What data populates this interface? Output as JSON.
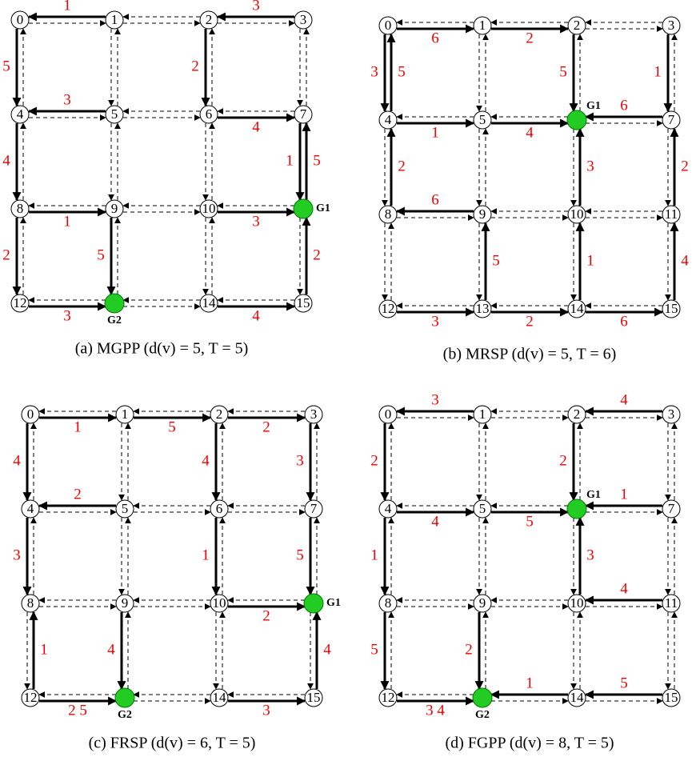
{
  "panels": [
    {
      "caption": "(a)  MGPP (d(v) = 5, T = 5)",
      "nodes": [
        "0",
        "1",
        "2",
        "3",
        "4",
        "5",
        "6",
        "7",
        "8",
        "9",
        "10",
        null,
        "12",
        null,
        "14",
        "15"
      ],
      "goals": [
        {
          "node": 11,
          "label": "G1"
        },
        {
          "node": 13,
          "label": "G2"
        }
      ],
      "edges": [
        {
          "from": 1,
          "to": 0,
          "label": 1
        },
        {
          "from": 3,
          "to": 2,
          "label": 3
        },
        {
          "from": 0,
          "to": 4,
          "label": 5
        },
        {
          "from": 2,
          "to": 6,
          "label": 2
        },
        {
          "from": 5,
          "to": 4,
          "label": 3
        },
        {
          "from": 6,
          "to": 7,
          "label": 4
        },
        {
          "from": 4,
          "to": 8,
          "label": 4
        },
        {
          "from": 7,
          "to": 11,
          "label": 1
        },
        {
          "from": 11,
          "to": 7,
          "label": 5
        },
        {
          "from": 8,
          "to": 9,
          "label": 1
        },
        {
          "from": 10,
          "to": 11,
          "label": 3
        },
        {
          "from": 8,
          "to": 12,
          "label": 2
        },
        {
          "from": 9,
          "to": 13,
          "label": 5
        },
        {
          "from": 12,
          "to": 13,
          "label": 3
        },
        {
          "from": 14,
          "to": 15,
          "label": 4
        },
        {
          "from": 15,
          "to": 11,
          "label": 2
        }
      ]
    },
    {
      "caption": "(b)  MRSP (d(v) = 5, T = 6)",
      "nodes": [
        "0",
        "1",
        "2",
        "3",
        "4",
        "5",
        null,
        "7",
        "8",
        "9",
        "10",
        "11",
        "12",
        "13",
        "14",
        "15"
      ],
      "goals": [
        {
          "node": 6,
          "label": "G1"
        }
      ],
      "edges": [
        {
          "from": 0,
          "to": 1,
          "label": 6
        },
        {
          "from": 1,
          "to": 2,
          "label": 2
        },
        {
          "from": 0,
          "to": 4,
          "label": 3
        },
        {
          "from": 4,
          "to": 0,
          "label": 5
        },
        {
          "from": 2,
          "to": 6,
          "label": 5
        },
        {
          "from": 3,
          "to": 7,
          "label": 1
        },
        {
          "from": 4,
          "to": 5,
          "label": 1
        },
        {
          "from": 5,
          "to": 6,
          "label": 4
        },
        {
          "from": 7,
          "to": 6,
          "label": 6
        },
        {
          "from": 8,
          "to": 4,
          "label": 2
        },
        {
          "from": 10,
          "to": 6,
          "label": 3
        },
        {
          "from": 11,
          "to": 7,
          "label": 2
        },
        {
          "from": 9,
          "to": 8,
          "label": 6
        },
        {
          "from": 13,
          "to": 9,
          "label": 5
        },
        {
          "from": 14,
          "to": 10,
          "label": 1
        },
        {
          "from": 15,
          "to": 11,
          "label": 4
        },
        {
          "from": 12,
          "to": 13,
          "label": 3
        },
        {
          "from": 13,
          "to": 14,
          "label": 2
        },
        {
          "from": 14,
          "to": 15,
          "label": 6
        }
      ]
    },
    {
      "caption": "(c)  FRSP (d(v) = 6, T = 5)",
      "nodes": [
        "0",
        "1",
        "2",
        "3",
        "4",
        "5",
        "6",
        "7",
        "8",
        "9",
        "10",
        null,
        "12",
        null,
        "14",
        "15"
      ],
      "goals": [
        {
          "node": 11,
          "label": "G1"
        },
        {
          "node": 13,
          "label": "G2"
        }
      ],
      "edges": [
        {
          "from": 0,
          "to": 1,
          "label": 1
        },
        {
          "from": 1,
          "to": 2,
          "label": 5
        },
        {
          "from": 2,
          "to": 3,
          "label": 2
        },
        {
          "from": 0,
          "to": 4,
          "label": 4
        },
        {
          "from": 2,
          "to": 6,
          "label": 4
        },
        {
          "from": 3,
          "to": 7,
          "label": 3
        },
        {
          "from": 5,
          "to": 4,
          "label": 2
        },
        {
          "from": 4,
          "to": 8,
          "label": 3
        },
        {
          "from": 6,
          "to": 10,
          "label": 1
        },
        {
          "from": 7,
          "to": 11,
          "label": 5
        },
        {
          "from": 10,
          "to": 11,
          "label": 2
        },
        {
          "from": 12,
          "to": 8,
          "label": 1
        },
        {
          "from": 9,
          "to": 13,
          "label": 4
        },
        {
          "from": 12,
          "to": 13,
          "label": "2 5"
        },
        {
          "from": 14,
          "to": 15,
          "label": 3
        },
        {
          "from": 15,
          "to": 11,
          "label": 4
        }
      ]
    },
    {
      "caption": "(d)  FGPP (d(v) = 8, T = 5)",
      "nodes": [
        "0",
        "1",
        "2",
        "3",
        "4",
        "5",
        null,
        "7",
        "8",
        "9",
        "10",
        "11",
        "12",
        null,
        "14",
        "15"
      ],
      "goals": [
        {
          "node": 6,
          "label": "G1"
        },
        {
          "node": 13,
          "label": "G2"
        }
      ],
      "edges": [
        {
          "from": 1,
          "to": 0,
          "label": 3
        },
        {
          "from": 3,
          "to": 2,
          "label": 4
        },
        {
          "from": 0,
          "to": 4,
          "label": 2
        },
        {
          "from": 2,
          "to": 6,
          "label": 2
        },
        {
          "from": 4,
          "to": 5,
          "label": 4
        },
        {
          "from": 5,
          "to": 6,
          "label": 5
        },
        {
          "from": 7,
          "to": 6,
          "label": 1
        },
        {
          "from": 4,
          "to": 8,
          "label": 1
        },
        {
          "from": 10,
          "to": 6,
          "label": 3
        },
        {
          "from": 11,
          "to": 10,
          "label": 4
        },
        {
          "from": 8,
          "to": 12,
          "label": 5
        },
        {
          "from": 9,
          "to": 13,
          "label": 2
        },
        {
          "from": 12,
          "to": 13,
          "label": "3 4"
        },
        {
          "from": 14,
          "to": 13,
          "label": 1
        },
        {
          "from": 15,
          "to": 14,
          "label": 5
        }
      ]
    }
  ]
}
